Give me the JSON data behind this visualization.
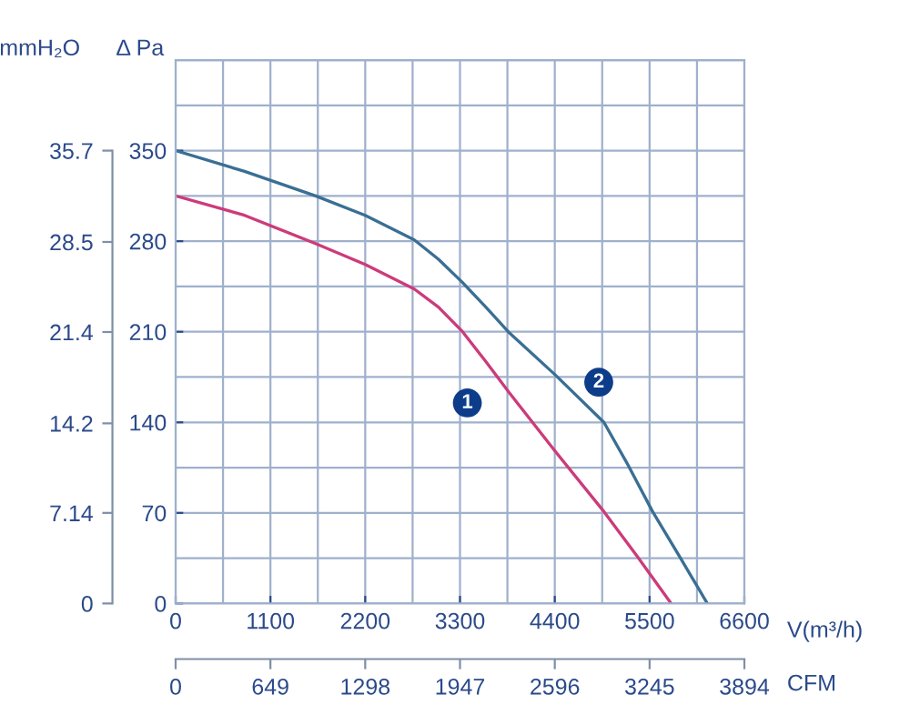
{
  "chart_data": {
    "type": "line",
    "xlabel": "V(m³/h)",
    "ylabel": "Δ Pa",
    "y2label": "mmH₂O",
    "x2label": "CFM",
    "xlim": [
      0,
      6600
    ],
    "xticks": [
      0,
      1100,
      2200,
      3300,
      4400,
      5500,
      6600
    ],
    "ylim": [
      0,
      420
    ],
    "yticks": [
      0,
      70,
      140,
      210,
      280,
      350
    ],
    "y2lim": [
      0,
      42.84
    ],
    "y2ticks": [
      0,
      7.14,
      14.2,
      21.4,
      28.5,
      35.7
    ],
    "x2lim": [
      0,
      3894
    ],
    "x2ticks": [
      0,
      649,
      1298,
      1947,
      2596,
      3245,
      3894
    ],
    "grid": true,
    "legend": false,
    "marker": "none",
    "line_style": "solid",
    "series": [
      {
        "color": "#cc3b7a",
        "x": [
          0,
          800,
          1630,
          2200,
          2770,
          3050,
          3330,
          3600,
          3870,
          4400,
          4970,
          5350,
          5750
        ],
        "values": [
          315,
          300,
          278,
          262,
          243,
          229,
          210,
          187,
          163,
          118,
          71,
          37,
          0
        ]
      },
      {
        "color": "#3a6f94",
        "x": [
          0,
          800,
          1625,
          2200,
          2770,
          3050,
          3330,
          3600,
          3860,
          4400,
          4970,
          5250,
          5535,
          5850,
          6170
        ],
        "values": [
          350,
          334,
          315,
          300,
          281,
          266,
          248,
          229,
          210,
          177,
          140,
          107,
          71,
          36,
          0
        ]
      }
    ],
    "annotations": [
      {
        "text": "1",
        "x": 3385,
        "y": 155
      },
      {
        "text": "2",
        "x": 4910,
        "y": 171
      }
    ]
  }
}
